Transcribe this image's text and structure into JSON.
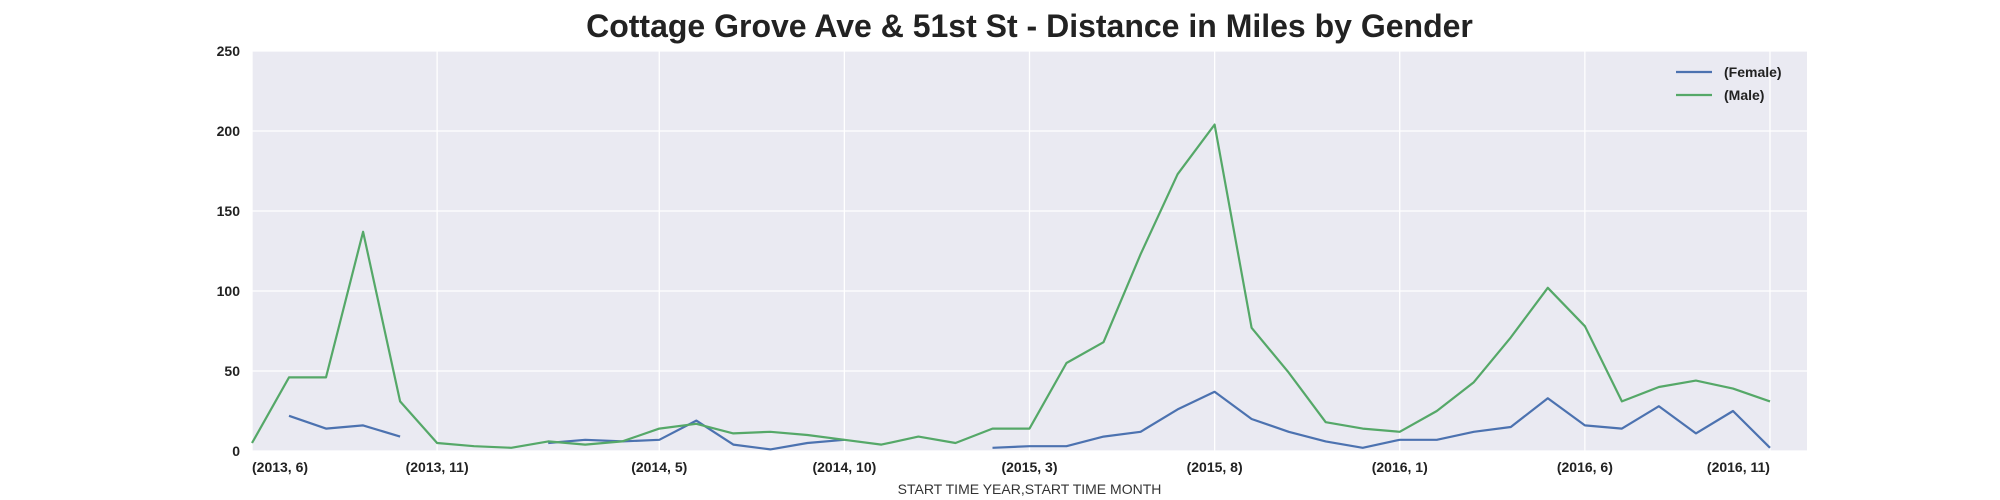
{
  "chart_data": {
    "type": "line",
    "title": "Cottage Grove Ave & 51st St - Distance in Miles by Gender",
    "xlabel": "START TIME YEAR,START TIME MONTH",
    "ylabel": "",
    "ylim": [
      0,
      250
    ],
    "yticks": [
      0,
      50,
      100,
      150,
      200,
      250
    ],
    "categories": [
      "(2013, 6)",
      "(2013, 7)",
      "(2013, 8)",
      "(2013, 9)",
      "(2013, 10)",
      "(2013, 11)",
      "(2013, 12)",
      "(2014, 1)",
      "(2014, 2)",
      "(2014, 3)",
      "(2014, 4)",
      "(2014, 5)",
      "(2014, 6)",
      "(2014, 7)",
      "(2014, 8)",
      "(2014, 9)",
      "(2014, 10)",
      "(2014, 11)",
      "(2014, 12)",
      "(2015, 1)",
      "(2015, 2)",
      "(2015, 3)",
      "(2015, 4)",
      "(2015, 5)",
      "(2015, 6)",
      "(2015, 7)",
      "(2015, 8)",
      "(2015, 9)",
      "(2015, 10)",
      "(2015, 11)",
      "(2015, 12)",
      "(2016, 1)",
      "(2016, 2)",
      "(2016, 3)",
      "(2016, 4)",
      "(2016, 5)",
      "(2016, 6)",
      "(2016, 7)",
      "(2016, 8)",
      "(2016, 9)",
      "(2016, 10)",
      "(2016, 11)",
      "(2016, 12)"
    ],
    "xtick_labels": [
      "(2013, 6)",
      "(2013, 11)",
      "(2014, 5)",
      "(2014, 10)",
      "(2015, 3)",
      "(2015, 8)",
      "(2016, 1)",
      "(2016, 6)",
      "(2016, 11)"
    ],
    "grid": true,
    "legend_position": "top-right",
    "series": [
      {
        "name": "(Female)",
        "color": "#4c72b0",
        "values": [
          null,
          22,
          14,
          16,
          9,
          null,
          null,
          null,
          5,
          7,
          6,
          7,
          19,
          4,
          1,
          5,
          7,
          null,
          null,
          null,
          2,
          3,
          3,
          9,
          12,
          26,
          37,
          20,
          12,
          6,
          2,
          7,
          7,
          12,
          15,
          33,
          16,
          14,
          28,
          11,
          25,
          2,
          null
        ]
      },
      {
        "name": "(Male)",
        "color": "#55a868",
        "values": [
          5,
          46,
          46,
          137,
          31,
          5,
          3,
          2,
          6,
          4,
          6,
          14,
          17,
          11,
          12,
          10,
          7,
          4,
          9,
          5,
          14,
          14,
          55,
          68,
          123,
          173,
          204,
          77,
          49,
          18,
          14,
          12,
          25,
          43,
          71,
          102,
          78,
          31,
          40,
          44,
          39,
          31,
          null
        ]
      }
    ]
  }
}
